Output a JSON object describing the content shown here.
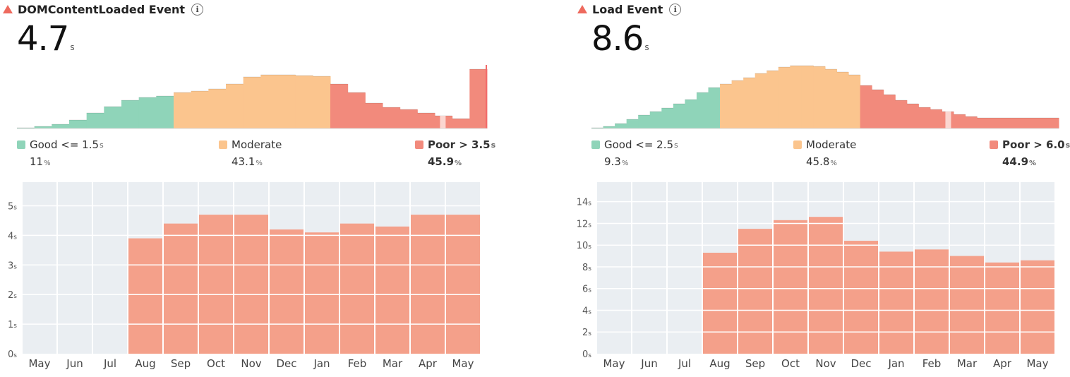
{
  "panels": [
    {
      "title": "DOMContentLoaded Event",
      "info_icon": "info-icon",
      "value": "4.7",
      "value_unit": "s",
      "legend": {
        "good": {
          "label": "Good <= 1.5",
          "unit": "s",
          "pct": "11",
          "pct_unit": "%",
          "color": "#8fd4b9"
        },
        "moderate": {
          "label": "Moderate",
          "pct": "43.1",
          "pct_unit": "%",
          "color": "#fbc58e"
        },
        "poor": {
          "label": "Poor > 3.5",
          "unit": "s",
          "pct": "45.9",
          "pct_unit": "%",
          "color": "#f28a7c"
        }
      }
    },
    {
      "title": "Load Event",
      "info_icon": "info-icon",
      "value": "8.6",
      "value_unit": "s",
      "legend": {
        "good": {
          "label": "Good <= 2.5",
          "unit": "s",
          "pct": "9.3",
          "pct_unit": "%",
          "color": "#8fd4b9"
        },
        "moderate": {
          "label": "Moderate",
          "pct": "45.8",
          "pct_unit": "%",
          "color": "#fbc58e"
        },
        "poor": {
          "label": "Poor > 6.0",
          "unit": "s",
          "pct": "44.9",
          "pct_unit": "%",
          "color": "#f28a7c"
        }
      }
    }
  ],
  "chart_data": [
    {
      "type": "bar",
      "categories": [
        "May",
        "Jun",
        "Jul",
        "Aug",
        "Sep",
        "Oct",
        "Nov",
        "Dec",
        "Jan",
        "Feb",
        "Mar",
        "Apr",
        "May"
      ],
      "values": [
        null,
        null,
        null,
        3.9,
        4.4,
        4.7,
        4.7,
        4.2,
        4.1,
        4.4,
        4.3,
        4.7,
        4.7
      ],
      "y_ticks": [
        "0",
        "1",
        "2",
        "3",
        "4",
        "5"
      ],
      "y_unit": "s",
      "ylim": [
        0,
        5.8
      ],
      "bar_color": "#f4a08a",
      "empty_color": "#eaeef2",
      "grid": true
    },
    {
      "type": "bar",
      "categories": [
        "May",
        "Jun",
        "Jul",
        "Aug",
        "Sep",
        "Oct",
        "Nov",
        "Dec",
        "Jan",
        "Feb",
        "Mar",
        "Apr",
        "May"
      ],
      "values": [
        null,
        null,
        null,
        9.3,
        11.5,
        12.3,
        12.6,
        10.4,
        9.4,
        9.6,
        9.0,
        8.4,
        8.6
      ],
      "y_ticks": [
        "0",
        "2",
        "4",
        "6",
        "8",
        "10",
        "12",
        "14"
      ],
      "y_unit": "s",
      "ylim": [
        0,
        15.8
      ],
      "bar_color": "#f4a08a",
      "empty_color": "#eaeef2",
      "grid": true
    },
    {
      "type": "bar",
      "title": "",
      "series": [
        {
          "name": "Good",
          "color": "#8fd4b9",
          "values": [
            1,
            3,
            6,
            12,
            22,
            31,
            40,
            44,
            46
          ]
        },
        {
          "name": "Moderate",
          "color": "#fbc58e",
          "values": [
            51,
            53,
            56,
            63,
            73,
            76,
            76,
            75,
            74
          ]
        },
        {
          "name": "Poor",
          "color": "#f28a7c",
          "values": [
            63,
            51,
            36,
            30,
            27,
            22,
            18,
            14,
            84
          ]
        }
      ],
      "marker_color": "#fbd6d0"
    },
    {
      "type": "bar",
      "title": "",
      "series": [
        {
          "name": "Good",
          "color": "#8fd4b9",
          "values": [
            1,
            3,
            7,
            13,
            19,
            24,
            29,
            35,
            41,
            51,
            58
          ]
        },
        {
          "name": "Moderate",
          "color": "#fbc58e",
          "values": [
            63,
            68,
            72,
            78,
            82,
            87,
            89,
            89,
            88,
            84,
            80,
            76
          ]
        },
        {
          "name": "Poor",
          "color": "#f28a7c",
          "values": [
            61,
            55,
            48,
            40,
            35,
            30,
            27,
            24,
            20,
            17,
            15,
            15,
            15,
            15,
            15,
            15,
            15
          ]
        }
      ],
      "marker_color": "#fbd6d0"
    }
  ]
}
